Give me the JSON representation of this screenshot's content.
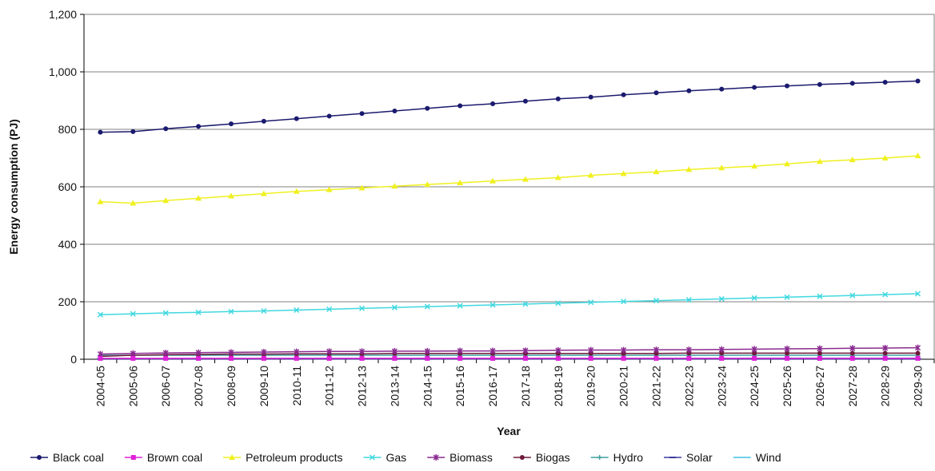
{
  "chart_data": {
    "type": "line",
    "title": "",
    "xlabel": "Year",
    "ylabel": "Energy consumption (PJ)",
    "ylim": [
      0,
      1200
    ],
    "yticks": [
      0,
      200,
      400,
      600,
      800,
      1000,
      1200
    ],
    "ytick_labels": [
      "0",
      "200",
      "400",
      "600",
      "800",
      "1,000",
      "1,200"
    ],
    "grid": "horizontal",
    "legend_position": "bottom",
    "categories": [
      "2004-05",
      "2005-06",
      "2006-07",
      "2007-08",
      "2008-09",
      "2009-10",
      "2010-11",
      "2011-12",
      "2012-13",
      "2013-14",
      "2014-15",
      "2015-16",
      "2016-17",
      "2017-18",
      "2018-19",
      "2019-20",
      "2020-21",
      "2021-22",
      "2022-23",
      "2023-24",
      "2024-25",
      "2025-26",
      "2026-27",
      "2027-28",
      "2028-29",
      "2029-30"
    ],
    "series": [
      {
        "name": "Black coal",
        "color": "#1a1a6e",
        "marker": "circle",
        "values": [
          790,
          792,
          802,
          810,
          819,
          828,
          837,
          846,
          855,
          864,
          873,
          882,
          889,
          898,
          906,
          912,
          920,
          927,
          934,
          940,
          946,
          951,
          956,
          960,
          964,
          968
        ]
      },
      {
        "name": "Brown coal",
        "color": "#e020d8",
        "marker": "square",
        "values": [
          3,
          3,
          3,
          3,
          3,
          3,
          3,
          3,
          3,
          3,
          3,
          3,
          3,
          3,
          3,
          3,
          3,
          3,
          3,
          3,
          3,
          3,
          3,
          3,
          3,
          3
        ]
      },
      {
        "name": "Petroleum products",
        "color": "#f0f020",
        "marker": "triangle",
        "values": [
          548,
          543,
          552,
          560,
          568,
          576,
          584,
          590,
          596,
          602,
          608,
          614,
          620,
          626,
          632,
          640,
          646,
          652,
          660,
          666,
          672,
          680,
          688,
          694,
          700,
          708
        ]
      },
      {
        "name": "Gas",
        "color": "#40d8e0",
        "marker": "x",
        "values": [
          155,
          158,
          161,
          163,
          166,
          168,
          171,
          174,
          177,
          180,
          183,
          186,
          189,
          192,
          195,
          198,
          201,
          204,
          207,
          210,
          213,
          216,
          219,
          222,
          225,
          228
        ]
      },
      {
        "name": "Biomass",
        "color": "#8a2a90",
        "marker": "star",
        "values": [
          18,
          20,
          22,
          23,
          24,
          25,
          26,
          27,
          27,
          28,
          28,
          29,
          29,
          30,
          31,
          32,
          32,
          33,
          33,
          34,
          35,
          36,
          37,
          38,
          39,
          40
        ]
      },
      {
        "name": "Biogas",
        "color": "#6e1a3a",
        "marker": "circle",
        "values": [
          10,
          14,
          16,
          17,
          18,
          18,
          19,
          19,
          19,
          20,
          20,
          20,
          20,
          20,
          20,
          20,
          20,
          20,
          21,
          21,
          21,
          21,
          21,
          21,
          21,
          21
        ]
      },
      {
        "name": "Hydro",
        "color": "#40a0a0",
        "marker": "plus",
        "values": [
          14,
          14,
          14,
          14,
          14,
          14,
          14,
          14,
          14,
          14,
          14,
          14,
          14,
          14,
          14,
          14,
          14,
          14,
          14,
          14,
          14,
          14,
          14,
          14,
          14,
          14
        ]
      },
      {
        "name": "Solar",
        "color": "#3a3aa0",
        "marker": "dash",
        "values": [
          1,
          1,
          1,
          1,
          1,
          1,
          1,
          1,
          1,
          1,
          1,
          1,
          1,
          1,
          1,
          1,
          1,
          1,
          1,
          1,
          1,
          1,
          1,
          1,
          1,
          1
        ]
      },
      {
        "name": "Wind",
        "color": "#40c0e0",
        "marker": "none",
        "values": [
          2,
          2,
          2,
          2,
          2,
          2,
          3,
          3,
          3,
          3,
          3,
          3,
          3,
          3,
          3,
          3,
          3,
          3,
          3,
          3,
          4,
          4,
          4,
          4,
          4,
          4
        ]
      }
    ]
  }
}
